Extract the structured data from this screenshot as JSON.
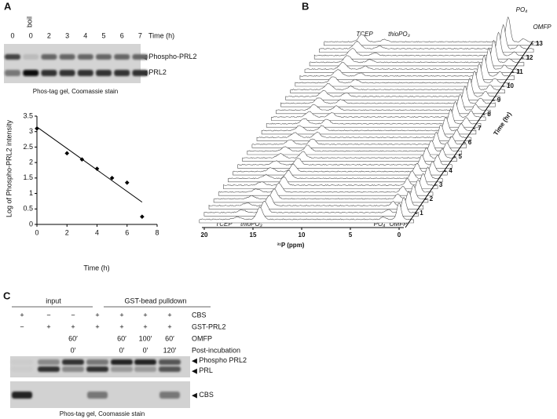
{
  "panel_a": {
    "letter": "A",
    "gel": {
      "lanes": [
        "0",
        "0",
        "2",
        "3",
        "4",
        "5",
        "6",
        "7"
      ],
      "boil": "boil",
      "time_label": "Time (h)",
      "bands": [
        "Phospho-PRL2",
        "PRL2"
      ],
      "caption": "Phos-tag gel, Coomassie stain"
    }
  },
  "chart_data": {
    "type": "scatter",
    "x": [
      0,
      2,
      3,
      4,
      5,
      6,
      7
    ],
    "values": [
      3.1,
      2.3,
      2.1,
      1.8,
      1.5,
      1.35,
      0.25
    ],
    "color": "#000000",
    "xlim": [
      0,
      8
    ],
    "ylim": [
      0,
      3.5
    ],
    "xticks": [
      0,
      2,
      4,
      6,
      8
    ],
    "yticks": [
      0,
      0.5,
      1,
      1.5,
      2,
      2.5,
      3,
      3.5
    ],
    "x_label": "Time (h)",
    "y_label": "Log of Phospho-PRL2  intensity",
    "trendline": {
      "x": [
        0,
        7
      ],
      "y": [
        3.15,
        0.72
      ]
    }
  },
  "panel_b": {
    "letter": "B",
    "ppm_ticks": [
      20,
      15,
      10,
      5,
      0
    ],
    "ppm_label": "³¹P (ppm)",
    "time_ticks": [
      1,
      2,
      3,
      4,
      5,
      6,
      7,
      8,
      9,
      10,
      11,
      12,
      13
    ],
    "time_label": "Time (hr)",
    "bottom_labels": [
      "TCEP",
      "thioPO₃",
      "PO₄",
      "OMFP"
    ],
    "top_labels": [
      "TCEP",
      "thioPO₃",
      "PO₄",
      "OMFP"
    ]
  },
  "panel_c": {
    "letter": "C",
    "groups": [
      "input",
      "GST-bead pulldown"
    ],
    "rows": [
      {
        "label": "CBS",
        "cells": [
          "+",
          "−",
          "−",
          "+",
          "+",
          "+",
          "+"
        ]
      },
      {
        "label": "GST-PRL2",
        "cells": [
          "−",
          "+",
          "+",
          "+",
          "+",
          "+",
          "+"
        ]
      },
      {
        "label": "OMFP",
        "cells": [
          null,
          null,
          "60′",
          null,
          "60′",
          "100′",
          "60′"
        ]
      },
      {
        "label": "Post-incubation",
        "cells": [
          null,
          null,
          "0′",
          null,
          "0′",
          "0′",
          "120′"
        ]
      }
    ],
    "bands": [
      "Phospho PRL2",
      "PRL",
      "CBS"
    ],
    "caption": "Phos-tag gel, Coomassie stain"
  }
}
